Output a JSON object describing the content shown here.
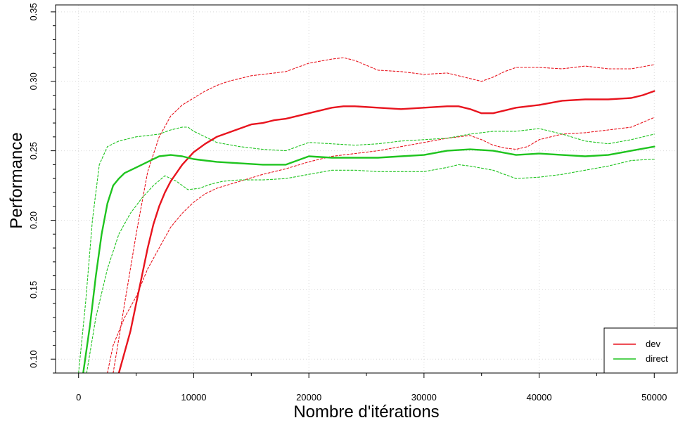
{
  "chart_data": {
    "type": "line",
    "xlabel": "Nombre d'itérations",
    "ylabel": "Performance",
    "xlim": [
      -2000,
      52000
    ],
    "ylim": [
      0.09,
      0.355
    ],
    "xticks": [
      0,
      10000,
      20000,
      30000,
      40000,
      50000
    ],
    "xtick_labels": [
      "0",
      "10000",
      "20000",
      "30000",
      "40000",
      "50000"
    ],
    "yticks": [
      0.1,
      0.15,
      0.2,
      0.25,
      0.3,
      0.35
    ],
    "ytick_labels": [
      "0.10",
      "0.15",
      "0.20",
      "0.25",
      "0.30",
      "0.35"
    ],
    "grid": true,
    "legend_position": "bottom-right",
    "series": [
      {
        "name": "dev",
        "color": "#e8141e",
        "style": "solid",
        "x": [
          3500,
          4000,
          4500,
          5000,
          5500,
          6000,
          6500,
          7000,
          7500,
          8000,
          9000,
          10000,
          11000,
          12000,
          13000,
          14000,
          15000,
          16000,
          17000,
          18000,
          20000,
          22000,
          23000,
          24000,
          26000,
          28000,
          30000,
          32000,
          33000,
          34000,
          35000,
          36000,
          37000,
          38000,
          40000,
          42000,
          44000,
          46000,
          48000,
          49000,
          50000
        ],
        "y": [
          0.09,
          0.105,
          0.12,
          0.14,
          0.16,
          0.18,
          0.197,
          0.21,
          0.22,
          0.228,
          0.24,
          0.249,
          0.255,
          0.26,
          0.263,
          0.266,
          0.269,
          0.27,
          0.272,
          0.273,
          0.277,
          0.281,
          0.282,
          0.282,
          0.281,
          0.28,
          0.281,
          0.282,
          0.282,
          0.28,
          0.277,
          0.277,
          0.279,
          0.281,
          0.283,
          0.286,
          0.287,
          0.287,
          0.288,
          0.29,
          0.293
        ]
      },
      {
        "name": "",
        "color": "#e8141e",
        "style": "dashed",
        "x": [
          3000,
          4000,
          5000,
          6000,
          7000,
          8000,
          9000,
          10000,
          11000,
          12000,
          13000,
          14000,
          15000,
          16000,
          18000,
          20000,
          22000,
          23000,
          24000,
          26000,
          28000,
          30000,
          32000,
          34000,
          35000,
          36000,
          37000,
          38000,
          40000,
          42000,
          44000,
          46000,
          48000,
          50000
        ],
        "y": [
          0.09,
          0.14,
          0.19,
          0.235,
          0.26,
          0.275,
          0.283,
          0.288,
          0.293,
          0.297,
          0.3,
          0.302,
          0.304,
          0.305,
          0.307,
          0.313,
          0.316,
          0.317,
          0.315,
          0.308,
          0.307,
          0.305,
          0.306,
          0.302,
          0.3,
          0.303,
          0.307,
          0.31,
          0.31,
          0.309,
          0.311,
          0.309,
          0.309,
          0.312
        ]
      },
      {
        "name": "",
        "color": "#e8141e",
        "style": "dashed",
        "x": [
          2500,
          3000,
          4000,
          5000,
          6000,
          7000,
          8000,
          9000,
          10000,
          11000,
          12000,
          14000,
          16000,
          18000,
          20000,
          22000,
          24000,
          26000,
          28000,
          30000,
          32000,
          34000,
          35000,
          36000,
          37000,
          38000,
          39000,
          40000,
          42000,
          44000,
          46000,
          48000,
          50000
        ],
        "y": [
          0.09,
          0.11,
          0.13,
          0.145,
          0.165,
          0.18,
          0.195,
          0.205,
          0.213,
          0.219,
          0.223,
          0.228,
          0.233,
          0.237,
          0.242,
          0.246,
          0.248,
          0.25,
          0.253,
          0.256,
          0.259,
          0.261,
          0.258,
          0.254,
          0.252,
          0.251,
          0.253,
          0.258,
          0.262,
          0.263,
          0.265,
          0.267,
          0.274
        ]
      },
      {
        "name": "direct",
        "color": "#1fc41f",
        "style": "solid",
        "x": [
          400,
          1000,
          1500,
          2000,
          2500,
          3000,
          3500,
          4000,
          5000,
          6000,
          7000,
          8000,
          9000,
          10000,
          11000,
          12000,
          14000,
          16000,
          18000,
          20000,
          22000,
          24000,
          26000,
          28000,
          30000,
          32000,
          34000,
          36000,
          38000,
          40000,
          42000,
          44000,
          46000,
          48000,
          50000
        ],
        "y": [
          0.09,
          0.125,
          0.16,
          0.19,
          0.212,
          0.225,
          0.23,
          0.234,
          0.238,
          0.242,
          0.246,
          0.247,
          0.246,
          0.244,
          0.243,
          0.242,
          0.241,
          0.24,
          0.24,
          0.246,
          0.245,
          0.245,
          0.245,
          0.246,
          0.247,
          0.25,
          0.251,
          0.25,
          0.247,
          0.248,
          0.247,
          0.246,
          0.247,
          0.25,
          0.253
        ]
      },
      {
        "name": "",
        "color": "#1fc41f",
        "style": "dashed",
        "x": [
          0,
          600,
          1200,
          1800,
          2500,
          3500,
          5000,
          6000,
          7000,
          8000,
          9000,
          9500,
          10000,
          11000,
          12000,
          14000,
          16000,
          18000,
          20000,
          22000,
          24000,
          26000,
          28000,
          30000,
          32000,
          34000,
          36000,
          38000,
          40000,
          42000,
          44000,
          46000,
          48000,
          50000
        ],
        "y": [
          0.09,
          0.14,
          0.2,
          0.24,
          0.253,
          0.257,
          0.26,
          0.261,
          0.262,
          0.265,
          0.267,
          0.267,
          0.264,
          0.26,
          0.256,
          0.253,
          0.251,
          0.25,
          0.256,
          0.255,
          0.254,
          0.255,
          0.257,
          0.258,
          0.259,
          0.262,
          0.264,
          0.264,
          0.266,
          0.262,
          0.257,
          0.255,
          0.258,
          0.262
        ]
      },
      {
        "name": "",
        "color": "#1fc41f",
        "style": "dashed",
        "x": [
          700,
          1500,
          2500,
          3500,
          4500,
          5500,
          6500,
          7500,
          8500,
          9500,
          10500,
          11500,
          12500,
          14000,
          16000,
          18000,
          20000,
          22000,
          24000,
          26000,
          28000,
          30000,
          32000,
          33000,
          34000,
          36000,
          38000,
          40000,
          42000,
          44000,
          46000,
          48000,
          50000
        ],
        "y": [
          0.09,
          0.13,
          0.165,
          0.19,
          0.205,
          0.216,
          0.225,
          0.232,
          0.228,
          0.222,
          0.223,
          0.226,
          0.228,
          0.229,
          0.229,
          0.23,
          0.233,
          0.236,
          0.236,
          0.235,
          0.235,
          0.235,
          0.238,
          0.24,
          0.239,
          0.236,
          0.23,
          0.231,
          0.233,
          0.236,
          0.239,
          0.243,
          0.244
        ]
      }
    ],
    "legend": [
      {
        "label": "dev",
        "color": "#e8141e"
      },
      {
        "label": "direct",
        "color": "#1fc41f"
      }
    ]
  }
}
